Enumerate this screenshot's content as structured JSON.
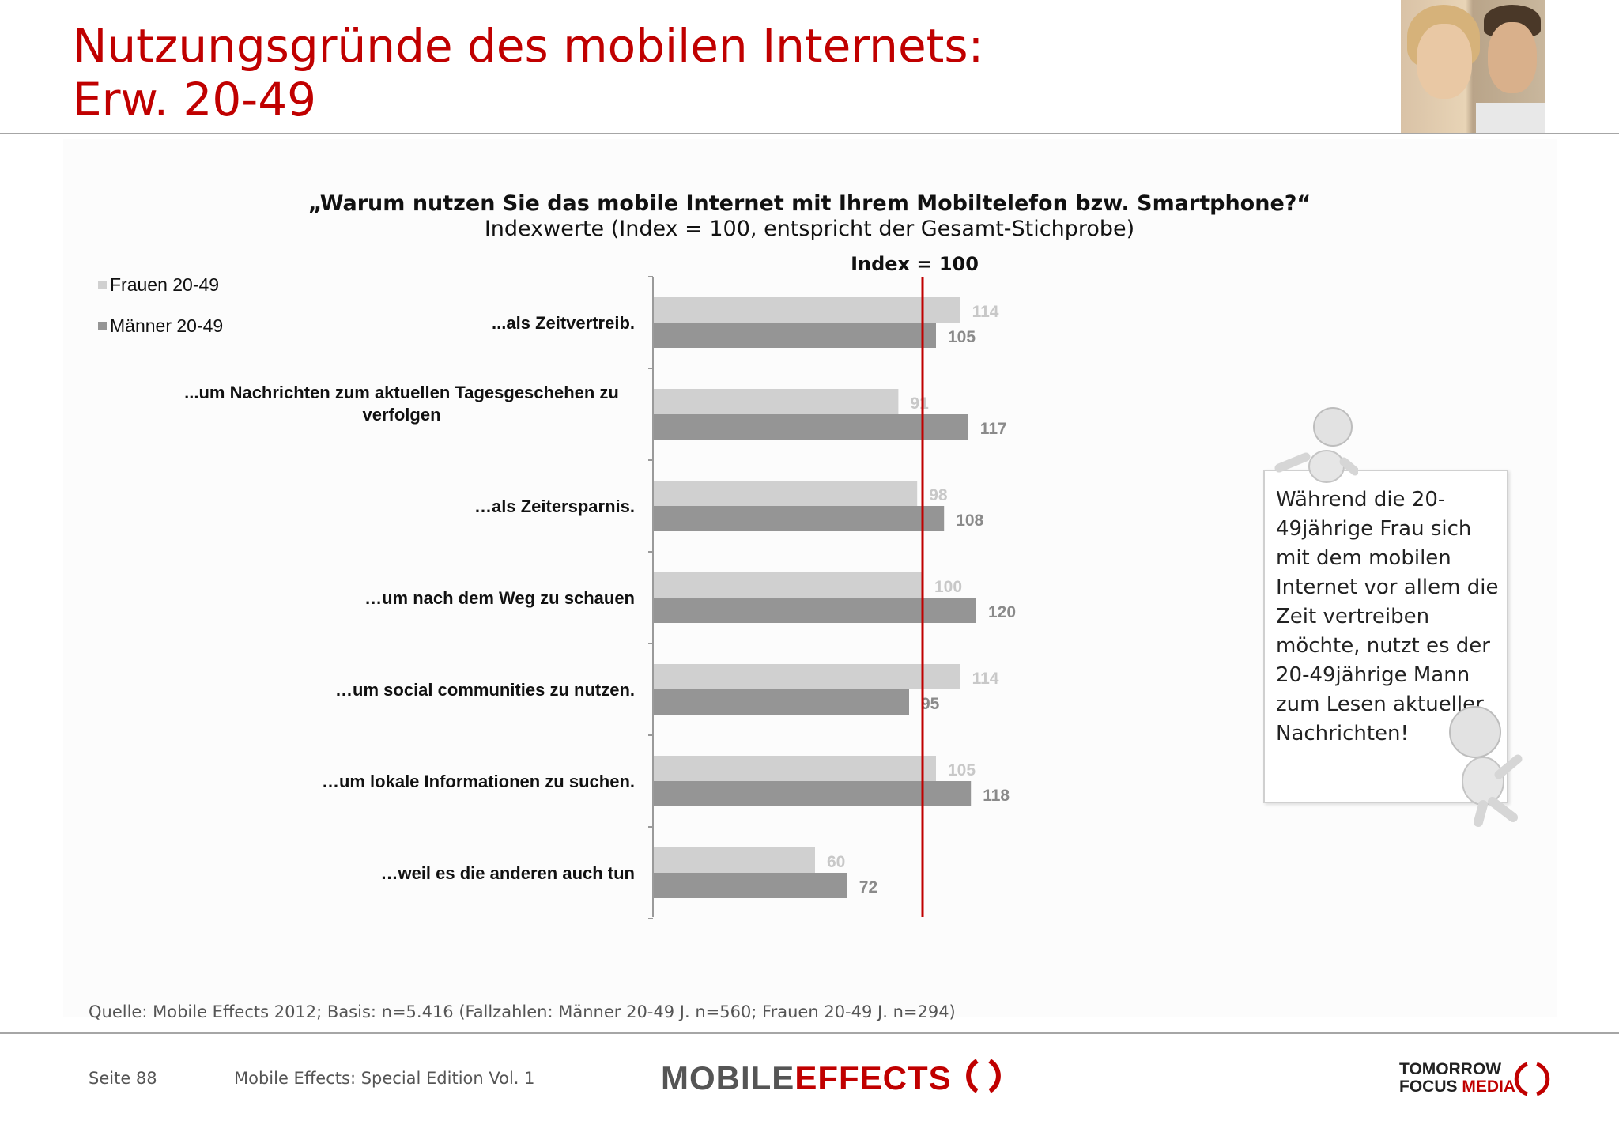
{
  "slide": {
    "title_line1": "Nutzungsgründe des mobilen Internets:",
    "title_line2": "Erw. 20-49"
  },
  "chart_data": {
    "type": "bar",
    "orientation": "horizontal",
    "title": "„Warum nutzen Sie das mobile Internet mit Ihrem Mobiltelefon bzw. Smartphone?“",
    "subtitle": "Indexwerte (Index = 100, entspricht der Gesamt-Stichprobe)",
    "reference_line": {
      "value": 100,
      "label": "Index = 100"
    },
    "categories": [
      "...als Zeitvertreib.",
      "...um Nachrichten zum aktuellen Tagesgeschehen zu verfolgen",
      "…als Zeitersparnis.",
      "…um nach dem Weg zu schauen",
      "…um social communities zu nutzen.",
      "…um lokale Informationen zu suchen.",
      "…weil es die anderen auch tun"
    ],
    "series": [
      {
        "name": "Frauen 20-49",
        "color": "#d0d0d0",
        "label_color": "#c8c8c8",
        "values": [
          114,
          91,
          98,
          100,
          114,
          105,
          60
        ]
      },
      {
        "name": "Männer 20-49",
        "color": "#959595",
        "label_color": "#8a8a8a",
        "values": [
          105,
          117,
          108,
          120,
          95,
          118,
          72
        ]
      }
    ],
    "xlim": [
      0,
      150
    ],
    "reference_color": "#c00000",
    "legend_position": "top-left",
    "grid": false
  },
  "note": {
    "text": "Während die 20-49jährige Frau sich mit dem mobilen Internet vor allem die Zeit vertreiben möchte, nutzt es der 20-49jährige Mann zum Lesen aktueller Nachrichten!"
  },
  "footer": {
    "source": "Quelle: Mobile Effects 2012; Basis: n=5.416 (Fallzahlen: Männer 20-49 J. n=560; Frauen 20-49 J. n=294)",
    "page": "Seite 88",
    "edition": "Mobile Effects: Special Edition Vol. 1",
    "logo_mobile": "MOBILE",
    "logo_effects": "EFFECTS",
    "logo_tomorrow": "TOMORROW",
    "logo_focus": "FOCUS",
    "logo_media": "MEDIA"
  }
}
